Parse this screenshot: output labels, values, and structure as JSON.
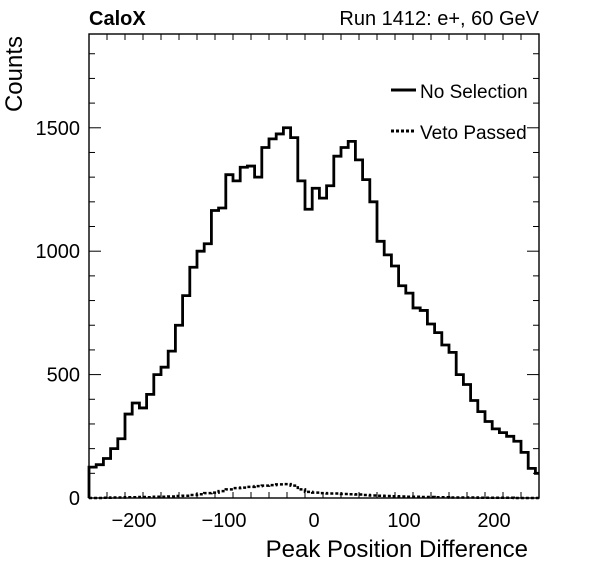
{
  "header": {
    "experiment": "CaloX",
    "run_info": "Run 1412: e+, 60 GeV"
  },
  "chart_data": {
    "type": "line",
    "xlabel": "Peak Position Difference",
    "ylabel": "Counts",
    "xlim": [
      -250,
      250
    ],
    "ylim": [
      0,
      1880
    ],
    "xticks": [
      -200,
      -100,
      0,
      100,
      200
    ],
    "xtick_labels": [
      "−200",
      "−100",
      "0",
      "100",
      "200"
    ],
    "yticks": [
      0,
      500,
      1000,
      1500
    ],
    "ytick_labels": [
      "0",
      "500",
      "1000",
      "1500"
    ],
    "grid": false,
    "legend_position": "top-right",
    "bin_edges_start": -250,
    "bin_width": 8,
    "series": [
      {
        "name": "No Selection",
        "style": "solid",
        "values": [
          125,
          135,
          160,
          200,
          240,
          340,
          385,
          365,
          420,
          500,
          530,
          595,
          700,
          820,
          935,
          1000,
          1030,
          1165,
          1175,
          1310,
          1285,
          1340,
          1345,
          1300,
          1420,
          1455,
          1475,
          1500,
          1460,
          1285,
          1170,
          1255,
          1215,
          1265,
          1385,
          1420,
          1445,
          1370,
          1290,
          1200,
          1040,
          985,
          940,
          860,
          830,
          770,
          760,
          705,
          670,
          620,
          590,
          500,
          460,
          395,
          350,
          310,
          280,
          265,
          250,
          230,
          185,
          120,
          100
        ]
      },
      {
        "name": "Veto Passed",
        "style": "dashed",
        "values": [
          0,
          0,
          1,
          2,
          2,
          3,
          3,
          4,
          3,
          5,
          5,
          6,
          8,
          9,
          12,
          15,
          20,
          22,
          28,
          35,
          40,
          42,
          45,
          48,
          50,
          52,
          55,
          56,
          50,
          35,
          25,
          22,
          20,
          18,
          18,
          16,
          15,
          14,
          12,
          10,
          9,
          8,
          7,
          6,
          5,
          5,
          4,
          4,
          3,
          3,
          2,
          2,
          2,
          2,
          1,
          1,
          1,
          1,
          1,
          0,
          0,
          0,
          0
        ]
      }
    ]
  }
}
